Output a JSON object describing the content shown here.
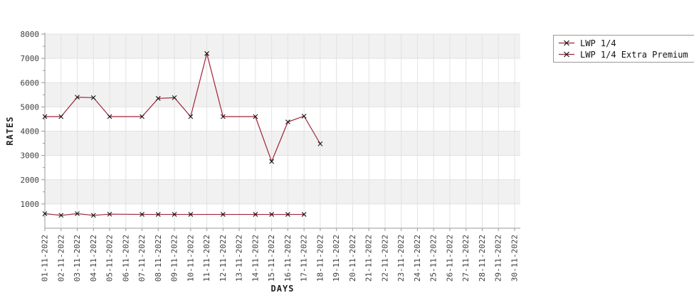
{
  "chart_data": {
    "type": "line",
    "title": "",
    "xlabel": "DAYS",
    "ylabel": "RATES",
    "ylim": [
      0,
      8000
    ],
    "y_tick_interval": 1000,
    "y_minor_tick_interval": 500,
    "y_tick_labels": [
      "1000",
      "2000",
      "3000",
      "4000",
      "5000",
      "6000",
      "7000",
      "8000"
    ],
    "grid": true,
    "alternating_bands": true,
    "legend_position": "top-right-outside",
    "x_categories": [
      "01-11-2022",
      "02-11-2022",
      "03-11-2022",
      "04-11-2022",
      "05-11-2022",
      "06-11-2022",
      "07-11-2022",
      "08-11-2022",
      "09-11-2022",
      "10-11-2022",
      "11-11-2022",
      "12-11-2022",
      "13-11-2022",
      "14-11-2022",
      "15-11-2022",
      "16-11-2022",
      "17-11-2022",
      "18-11-2022",
      "19-11-2022",
      "20-11-2022",
      "21-11-2022",
      "22-11-2022",
      "23-11-2022",
      "24-11-2022",
      "25-11-2022",
      "26-11-2022",
      "27-11-2022",
      "28-11-2022",
      "29-11-2022",
      "30-11-2022"
    ],
    "series": [
      {
        "name": "LWP 1/4",
        "marker": "x",
        "points": [
          {
            "x": "01-11-2022",
            "y": 4600
          },
          {
            "x": "02-11-2022",
            "y": 4600
          },
          {
            "x": "03-11-2022",
            "y": 5400
          },
          {
            "x": "04-11-2022",
            "y": 5380
          },
          {
            "x": "05-11-2022",
            "y": 4600
          },
          {
            "x": "07-11-2022",
            "y": 4600
          },
          {
            "x": "08-11-2022",
            "y": 5350
          },
          {
            "x": "09-11-2022",
            "y": 5380
          },
          {
            "x": "10-11-2022",
            "y": 4600
          },
          {
            "x": "11-11-2022",
            "y": 7200
          },
          {
            "x": "12-11-2022",
            "y": 4600
          },
          {
            "x": "14-11-2022",
            "y": 4600
          },
          {
            "x": "15-11-2022",
            "y": 2750
          },
          {
            "x": "16-11-2022",
            "y": 4380
          },
          {
            "x": "17-11-2022",
            "y": 4620
          },
          {
            "x": "18-11-2022",
            "y": 3480
          }
        ]
      },
      {
        "name": "LWP 1/4 Extra Premium",
        "marker": "x",
        "points": [
          {
            "x": "01-11-2022",
            "y": 600
          },
          {
            "x": "02-11-2022",
            "y": 530
          },
          {
            "x": "03-11-2022",
            "y": 600
          },
          {
            "x": "04-11-2022",
            "y": 530
          },
          {
            "x": "05-11-2022",
            "y": 580
          },
          {
            "x": "07-11-2022",
            "y": 570
          },
          {
            "x": "08-11-2022",
            "y": 570
          },
          {
            "x": "09-11-2022",
            "y": 570
          },
          {
            "x": "10-11-2022",
            "y": 570
          },
          {
            "x": "12-11-2022",
            "y": 570
          },
          {
            "x": "14-11-2022",
            "y": 570
          },
          {
            "x": "15-11-2022",
            "y": 570
          },
          {
            "x": "16-11-2022",
            "y": 570
          },
          {
            "x": "17-11-2022",
            "y": 570
          }
        ]
      }
    ],
    "colors": {
      "series_line": "#a02337",
      "marker": "#151515",
      "band": "#f1f1f1",
      "grid": "#e2e2e2",
      "axis": "#999999",
      "tick_label": "#3f3f3f",
      "legend_border": "#999999",
      "background": "#ffffff"
    }
  }
}
